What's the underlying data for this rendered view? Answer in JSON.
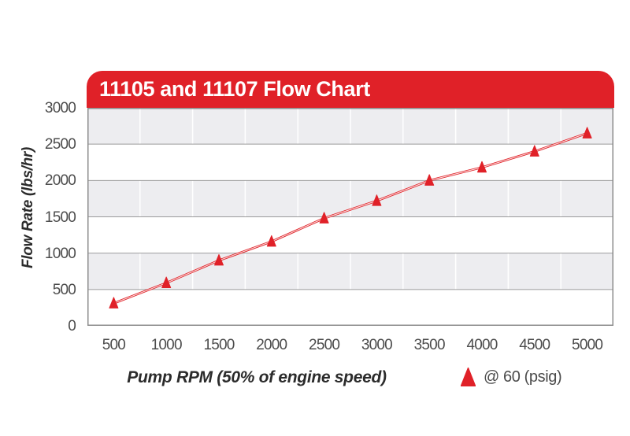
{
  "header": {
    "title": "11105 and 11107 Flow Chart"
  },
  "colors": {
    "accent_red": "#e02128",
    "line_inner_highlight": "#fadbdb",
    "band_gray": "#ededf0",
    "h_gridline": "#9b9b9b",
    "v_gridline": "#ffffff",
    "plot_border": "#8c8c8c",
    "tick_text": "#4c4c4c",
    "axis_title_text": "#2b2b2b",
    "header_text": "#ffffff"
  },
  "chart_data": {
    "type": "line",
    "title": "11105 and 11107 Flow Chart",
    "xlabel": "Pump RPM (50% of engine speed)",
    "ylabel": "Flow Rate (lbs/hr)",
    "x_categories": [
      "500",
      "1000",
      "1500",
      "2000",
      "2500",
      "3000",
      "3500",
      "4000",
      "4500",
      "5000"
    ],
    "x_values": [
      500,
      1000,
      1500,
      2000,
      2500,
      3000,
      3500,
      4000,
      4500,
      5000
    ],
    "series": [
      {
        "name": "@ 60 (psig)",
        "marker": "triangle-up",
        "color": "#e02128",
        "values": [
          310,
          590,
          900,
          1160,
          1480,
          1720,
          2000,
          2180,
          2400,
          2650
        ]
      }
    ],
    "ylim": [
      0,
      3000
    ],
    "yticks": [
      0,
      500,
      1000,
      1500,
      2000,
      2500,
      3000
    ],
    "grid": {
      "horizontal": true,
      "vertical": true,
      "alternating_bands": true
    },
    "legend_position": "bottom-right"
  }
}
